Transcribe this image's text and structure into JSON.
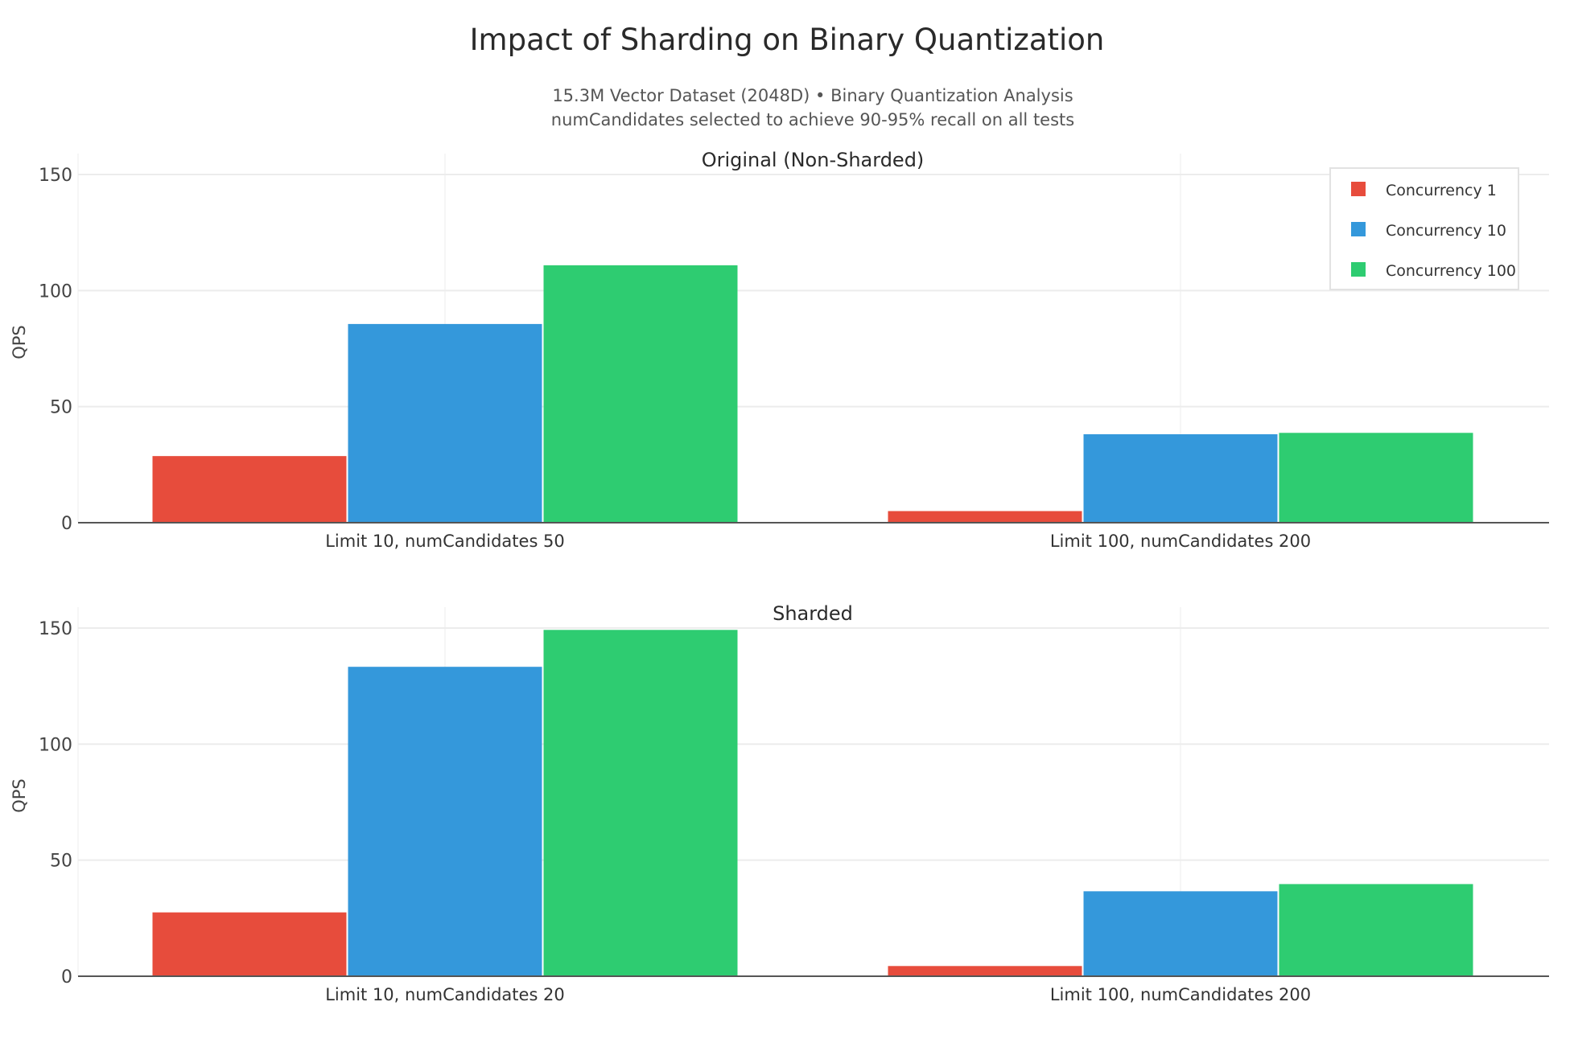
{
  "title": "Impact of Sharding on Binary Quantization",
  "subtitle_lines": [
    "15.3M Vector Dataset (2048D) • Binary Quantization Analysis",
    "numCandidates selected to achieve 90-95% recall on all tests"
  ],
  "legend": {
    "placement": "top-right",
    "items": [
      {
        "label": "Concurrency 1",
        "color": "#e74c3c"
      },
      {
        "label": "Concurrency 10",
        "color": "#3498db"
      },
      {
        "label": "Concurrency 100",
        "color": "#2ecc71"
      }
    ]
  },
  "chart_data": [
    {
      "type": "bar",
      "title": "Original (Non-Sharded)",
      "ylabel": "QPS",
      "xlabel": "",
      "ylim": [
        0,
        160
      ],
      "yticks": [
        "0",
        "50",
        "100",
        "150"
      ],
      "grid": true,
      "categories": [
        "Limit 10, numCandidates 50",
        "Limit 100, numCandidates 200"
      ],
      "series": [
        {
          "name": "Concurrency 1",
          "values": [
            28.7,
            5.0
          ]
        },
        {
          "name": "Concurrency 10",
          "values": [
            85.6,
            38.1
          ]
        },
        {
          "name": "Concurrency 100",
          "values": [
            110.9,
            38.7
          ]
        }
      ]
    },
    {
      "type": "bar",
      "title": "Sharded",
      "ylabel": "QPS",
      "xlabel": "",
      "ylim": [
        0,
        160
      ],
      "yticks": [
        "0",
        "50",
        "100",
        "150"
      ],
      "grid": true,
      "categories": [
        "Limit 10, numCandidates 20",
        "Limit 100, numCandidates 200"
      ],
      "series": [
        {
          "name": "Concurrency 1",
          "values": [
            27.5,
            4.4
          ]
        },
        {
          "name": "Concurrency 10",
          "values": [
            133.3,
            36.6
          ]
        },
        {
          "name": "Concurrency 100",
          "values": [
            149.2,
            39.7
          ]
        }
      ]
    }
  ]
}
